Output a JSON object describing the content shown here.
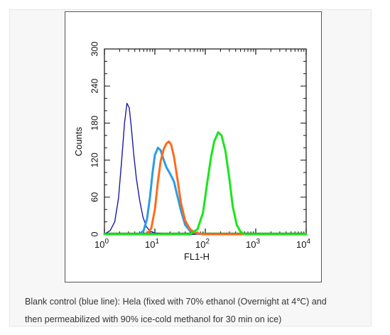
{
  "chart_data": {
    "type": "line",
    "xlabel": "FL1-H",
    "ylabel": "Counts",
    "x_scale": "log",
    "xlim": [
      1,
      10000
    ],
    "ylim": [
      0,
      300
    ],
    "x_ticks": [
      {
        "value": 1,
        "base": "10",
        "exp": "0"
      },
      {
        "value": 10,
        "base": "10",
        "exp": "1"
      },
      {
        "value": 100,
        "base": "10",
        "exp": "2"
      },
      {
        "value": 1000,
        "base": "10",
        "exp": "3"
      },
      {
        "value": 10000,
        "base": "10",
        "exp": "4"
      }
    ],
    "y_ticks": [
      "0",
      "60",
      "120",
      "180",
      "240",
      "300"
    ],
    "y_tick_values": [
      0,
      60,
      120,
      180,
      240,
      300
    ],
    "grid": false,
    "legend": "none",
    "series": [
      {
        "color": "#1a1aa6",
        "x": [
          1.0,
          1.3,
          1.6,
          1.9,
          2.2,
          2.5,
          2.8,
          3.1,
          3.4,
          3.8,
          4.3,
          5.0,
          5.8,
          6.8,
          8.0,
          10,
          14,
          30,
          100,
          10000
        ],
        "y": [
          0,
          6,
          20,
          58,
          120,
          180,
          212,
          205,
          175,
          130,
          90,
          55,
          28,
          12,
          5,
          2,
          1,
          0,
          0,
          0
        ]
      },
      {
        "color": "#2b9ce6",
        "x": [
          1.0,
          5.0,
          6.0,
          7.0,
          8.0,
          9.0,
          10.0,
          11.5,
          13.0,
          15.0,
          17.0,
          20.0,
          24.0,
          28.0,
          33.0,
          40.0,
          50.0,
          70.0,
          100,
          10000
        ],
        "y": [
          0,
          0,
          6,
          25,
          60,
          100,
          128,
          140,
          136,
          120,
          108,
          98,
          85,
          62,
          38,
          15,
          5,
          1,
          0,
          0
        ]
      },
      {
        "color": "#ff6a1a",
        "x": [
          1.0,
          7.0,
          8.5,
          10.0,
          11.5,
          13.0,
          15.0,
          17.0,
          19.0,
          21.0,
          24.0,
          28.0,
          33.0,
          40.0,
          50.0,
          65.0,
          90.0,
          10000
        ],
        "y": [
          0,
          0,
          10,
          40,
          85,
          118,
          138,
          147,
          150,
          145,
          125,
          90,
          50,
          22,
          8,
          2,
          0,
          0
        ]
      },
      {
        "color": "#19e619",
        "x": [
          1.0,
          50.0,
          70.0,
          90.0,
          110.0,
          130.0,
          150.0,
          180.0,
          210.0,
          250.0,
          300.0,
          350.0,
          420.0,
          500.0,
          600.0,
          10000
        ],
        "y": [
          0,
          0,
          8,
          35,
          85,
          125,
          150,
          165,
          160,
          135,
          90,
          45,
          15,
          4,
          0,
          0
        ]
      }
    ],
    "baseline_color": "#2a8a2a"
  },
  "caption": {
    "line1": "Blank control (blue line): Hela (fixed with 70% ethanol (Overnight at 4℃) and",
    "line2": "then permeabilized with 90% ice-cold methanol for 30 min on ice)"
  }
}
